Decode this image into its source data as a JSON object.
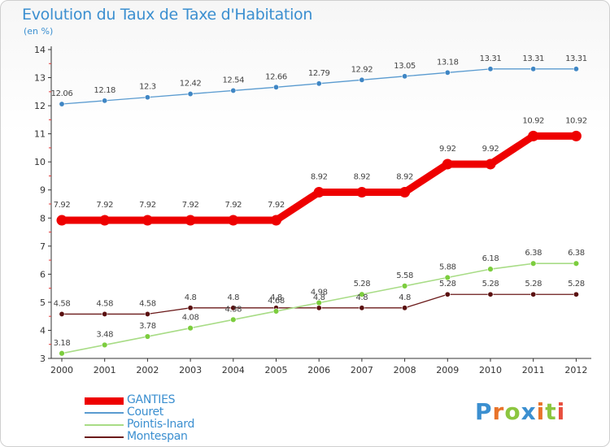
{
  "title": "Evolution du Taux de Taxe d'Habitation",
  "unit_label": "(en %)",
  "logo": {
    "text": "Proxiti",
    "letters": [
      {
        "ch": "P",
        "color": "#3b8fd0"
      },
      {
        "ch": "r",
        "color": "#e8732a"
      },
      {
        "ch": "o",
        "color": "#8cc63f"
      },
      {
        "ch": "x",
        "color": "#3b8fd0"
      },
      {
        "ch": "i",
        "color": "#e8732a"
      },
      {
        "ch": "t",
        "color": "#8cc63f"
      },
      {
        "ch": "i",
        "color": "#e84e3d"
      }
    ]
  },
  "chart_data": {
    "type": "line",
    "title": "Evolution du Taux de Taxe d'Habitation",
    "ylabel": "(en %)",
    "xlabel": "",
    "x": [
      "2000",
      "2001",
      "2002",
      "2003",
      "2004",
      "2005",
      "2006",
      "2007",
      "2008",
      "2009",
      "2010",
      "2011",
      "2012"
    ],
    "ylim": [
      3,
      14
    ],
    "yticks": [
      3,
      4,
      5,
      6,
      7,
      8,
      9,
      10,
      11,
      12,
      13,
      14
    ],
    "grid": false,
    "legend_position": "bottom-left",
    "series": [
      {
        "name": "Couret",
        "color": "#5a9bd0",
        "marker": "#3f86c4",
        "width": 1.3,
        "dot": 3.2,
        "values": [
          12.06,
          12.18,
          12.3,
          12.42,
          12.54,
          12.66,
          12.79,
          12.92,
          13.05,
          13.18,
          13.31,
          13.31,
          13.31
        ],
        "labels": [
          "12.06",
          "12.18",
          "12.3",
          "12.42",
          "12.54",
          "12.66",
          "12.79",
          "12.92",
          "13.05",
          "13.18",
          "13.31",
          "13.31",
          "13.31"
        ]
      },
      {
        "name": "Montespan",
        "color": "#6b1a1a",
        "marker": "#5a1010",
        "width": 1.3,
        "dot": 3.2,
        "values": [
          4.58,
          4.58,
          4.58,
          4.8,
          4.8,
          4.8,
          4.8,
          4.8,
          4.8,
          5.28,
          5.28,
          5.28,
          5.28
        ],
        "labels": [
          "4.58",
          "4.58",
          "4.58",
          "4.8",
          "4.8",
          "4.8",
          "4.8",
          "4.8",
          "4.8",
          "5.28",
          "5.28",
          "5.28",
          "5.28"
        ]
      },
      {
        "name": "Pointis-Inard",
        "color": "#a8dc86",
        "marker": "#7ccd3e",
        "width": 1.6,
        "dot": 3.4,
        "values": [
          3.18,
          3.48,
          3.78,
          4.08,
          4.38,
          4.68,
          4.98,
          5.28,
          5.58,
          5.88,
          6.18,
          6.38,
          6.38
        ],
        "labels": [
          "3.18",
          "3.48",
          "3.78",
          "4.08",
          "4.38",
          "4.68",
          "4.98",
          "5.28",
          "5.58",
          "5.88",
          "6.18",
          "6.38",
          "6.38"
        ]
      },
      {
        "name": "GANTIES",
        "color": "#ee0000",
        "marker": "#ee0000",
        "width": 9,
        "dot": 6.5,
        "values": [
          7.92,
          7.92,
          7.92,
          7.92,
          7.92,
          7.92,
          8.92,
          8.92,
          8.92,
          9.92,
          9.92,
          10.92,
          10.92
        ],
        "labels": [
          "7.92",
          "7.92",
          "7.92",
          "7.92",
          "7.92",
          "7.92",
          "8.92",
          "8.92",
          "8.92",
          "9.92",
          "9.92",
          "10.92",
          "10.92"
        ]
      }
    ],
    "legend": [
      {
        "name": "GANTIES",
        "color": "#ee0000",
        "width": 9
      },
      {
        "name": "Couret",
        "color": "#5a9bd0",
        "width": 1.5
      },
      {
        "name": "Pointis-Inard",
        "color": "#a8dc86",
        "width": 1.5
      },
      {
        "name": "Montespan",
        "color": "#6b1a1a",
        "width": 1.5
      }
    ]
  }
}
